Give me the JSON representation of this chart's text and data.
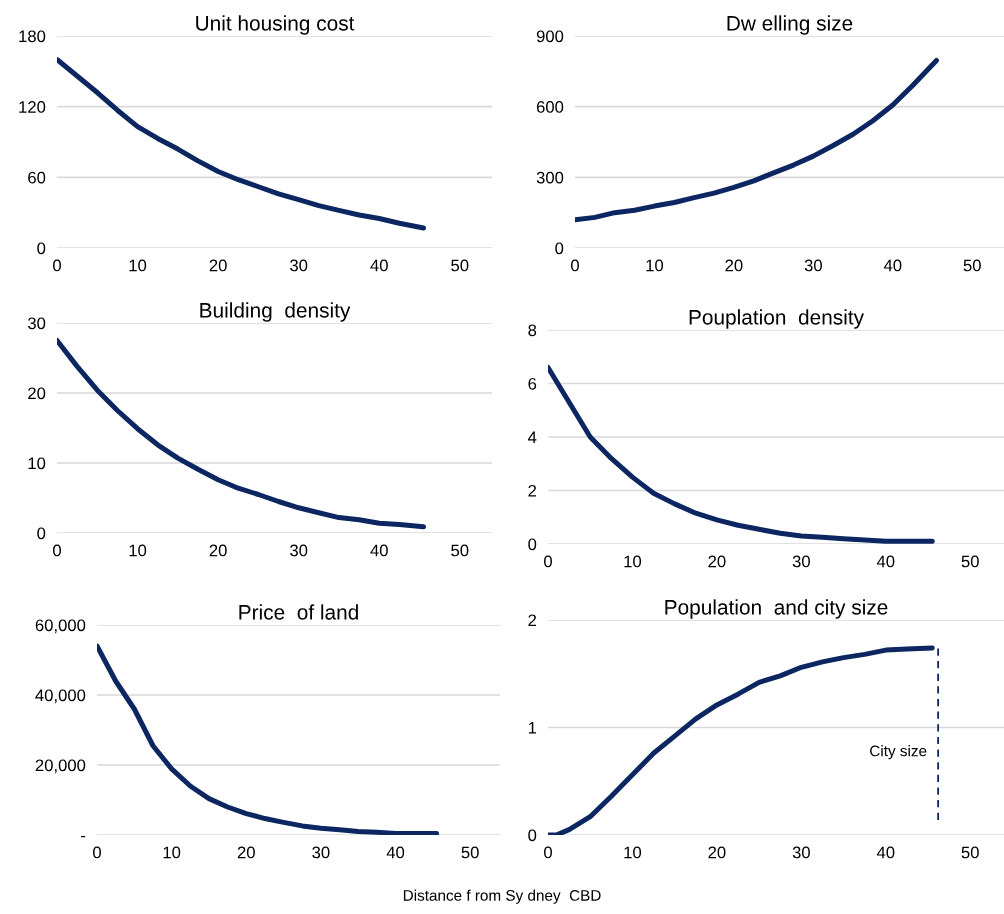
{
  "chart_data": [
    {
      "type": "line",
      "title": "Unit housing cost",
      "x": [
        0,
        2.5,
        5,
        7.5,
        10,
        12.5,
        15,
        17.5,
        20,
        22.5,
        25,
        27.5,
        30,
        32.5,
        35,
        37.5,
        40,
        42.5,
        45.5
      ],
      "series": [
        {
          "color": "#0b2660",
          "values": [
            160,
            146,
            132,
            117,
            103,
            93,
            84,
            74,
            65,
            58,
            52,
            46,
            41,
            36,
            32,
            28,
            25,
            21,
            17
          ]
        }
      ],
      "xlim": [
        0,
        54
      ],
      "xticks": [
        0,
        10,
        20,
        30,
        40,
        50
      ],
      "ylim": [
        0,
        180
      ],
      "yticks": [
        0,
        60,
        120,
        180
      ],
      "grid": "y"
    },
    {
      "type": "line",
      "title": "Dw elling size",
      "x": [
        0,
        2.5,
        5,
        7.5,
        10,
        12.5,
        15,
        17.5,
        20,
        22.5,
        25,
        27.5,
        30,
        32.5,
        35,
        37.5,
        40,
        42.5,
        45.5
      ],
      "series": [
        {
          "color": "#0b2660",
          "values": [
            120,
            130,
            150,
            160,
            178,
            193,
            214,
            233,
            257,
            285,
            319,
            352,
            390,
            435,
            483,
            540,
            607,
            690,
            796
          ]
        }
      ],
      "xlim": [
        0,
        54
      ],
      "xticks": [
        0,
        10,
        20,
        30,
        40,
        50
      ],
      "ylim": [
        0,
        900
      ],
      "yticks": [
        0,
        300,
        600,
        900
      ],
      "grid": "y"
    },
    {
      "type": "line",
      "title": "Building  density",
      "x": [
        0,
        2.5,
        5,
        7.5,
        10,
        12.5,
        15,
        17.5,
        20,
        22.5,
        25,
        27.5,
        30,
        32.5,
        35,
        37.5,
        40,
        42.5,
        45.5
      ],
      "series": [
        {
          "color": "#0b2660",
          "values": [
            27.5,
            23.8,
            20.4,
            17.5,
            14.9,
            12.6,
            10.7,
            9.1,
            7.6,
            6.4,
            5.5,
            4.5,
            3.6,
            2.9,
            2.2,
            1.9,
            1.4,
            1.2,
            0.9
          ]
        }
      ],
      "xlim": [
        0,
        54
      ],
      "xticks": [
        0,
        10,
        20,
        30,
        40,
        50
      ],
      "ylim": [
        0,
        30
      ],
      "yticks": [
        0,
        10,
        20,
        30
      ],
      "grid": "y"
    },
    {
      "type": "line",
      "title": "Pouplation  density",
      "x": [
        0,
        2.5,
        5,
        7.5,
        10,
        12.5,
        15,
        17.5,
        20,
        22.5,
        25,
        27.5,
        30,
        32.5,
        35,
        37.5,
        40,
        42.5,
        45.5
      ],
      "series": [
        {
          "color": "#0b2660",
          "values": [
            6.6,
            5.3,
            4.0,
            3.2,
            2.5,
            1.9,
            1.5,
            1.15,
            0.9,
            0.7,
            0.55,
            0.4,
            0.3,
            0.25,
            0.2,
            0.15,
            0.1,
            0.1,
            0.1
          ]
        }
      ],
      "xlim": [
        0,
        54
      ],
      "xticks": [
        0,
        10,
        20,
        30,
        40,
        50
      ],
      "ylim": [
        0,
        8
      ],
      "yticks": [
        0,
        2,
        4,
        6,
        8
      ],
      "grid": "y"
    },
    {
      "type": "line",
      "title": "Price  of land",
      "xlabel": "Distance f rom Sy dney  CBD",
      "x": [
        0,
        2.5,
        5,
        7.5,
        10,
        12.5,
        15,
        17.5,
        20,
        22.5,
        25,
        27.5,
        30,
        32.5,
        35,
        37.5,
        40,
        42.5,
        45.5
      ],
      "series": [
        {
          "color": "#0b2660",
          "values": [
            54000,
            44000,
            36000,
            25500,
            18900,
            14000,
            10400,
            8000,
            6100,
            4700,
            3600,
            2600,
            1900,
            1500,
            1000,
            800,
            400,
            400,
            400
          ]
        }
      ],
      "xlim": [
        0,
        54
      ],
      "xticks": [
        0,
        10,
        20,
        30,
        40,
        50
      ],
      "ylim": [
        0,
        60000
      ],
      "yticks": [
        {
          "value": 0,
          "label": "-"
        },
        {
          "value": 20000,
          "label": "20,000"
        },
        {
          "value": 40000,
          "label": "40,000"
        },
        {
          "value": 60000,
          "label": "60,000"
        }
      ],
      "grid": "y"
    },
    {
      "type": "line",
      "title": "Population  and city size",
      "x": [
        0,
        1,
        2.5,
        5,
        7.5,
        10,
        12.5,
        15,
        17.5,
        20,
        22.5,
        25,
        27.5,
        30,
        32.5,
        35,
        37.5,
        40,
        42.5,
        45.5
      ],
      "series": [
        {
          "color": "#0b2660",
          "values": [
            0,
            0,
            0.05,
            0.17,
            0.36,
            0.56,
            0.76,
            0.92,
            1.08,
            1.21,
            1.31,
            1.42,
            1.48,
            1.56,
            1.61,
            1.65,
            1.68,
            1.72,
            1.73,
            1.74
          ]
        },
        {
          "color": "#0b2660",
          "line_style": "dashed",
          "x": [
            46.2,
            46.2
          ],
          "values": [
            0.14,
            1.74
          ]
        }
      ],
      "annotations": [
        {
          "text": "City size",
          "x": 46.2,
          "y": 0.77
        }
      ],
      "xlim": [
        0,
        54
      ],
      "xticks": [
        0,
        10,
        20,
        30,
        40,
        50
      ],
      "ylim": [
        0,
        2
      ],
      "yticks": [
        0,
        1,
        2
      ],
      "grid": "y"
    }
  ]
}
